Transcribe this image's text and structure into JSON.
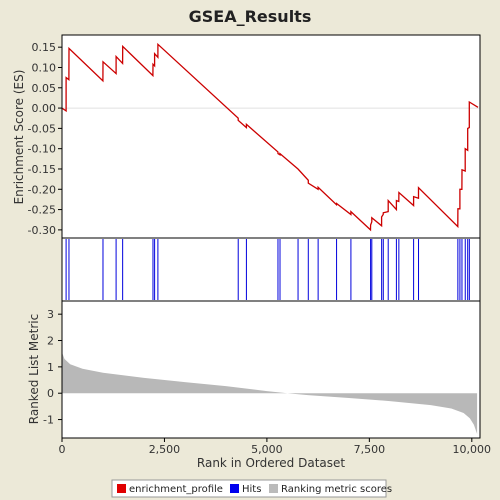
{
  "chart_data": {
    "type": "line",
    "title": "GSEA_Results",
    "xlabel": "Rank in Ordered Dataset",
    "es_panel": {
      "ylabel": "Enrichment Score (ES)",
      "ylim": [
        -0.32,
        0.18
      ],
      "yticks": [
        "0.15",
        "0.10",
        "0.05",
        "0.00",
        "-0.05",
        "-0.10",
        "-0.15",
        "-0.20",
        "-0.25",
        "-0.30"
      ],
      "ytick_values": [
        0.15,
        0.1,
        0.05,
        0.0,
        -0.05,
        -0.1,
        -0.15,
        -0.2,
        -0.25,
        -0.3
      ]
    },
    "rank_panel": {
      "ylabel": "Ranked List Metric",
      "ylim": [
        -1.7,
        3.5
      ],
      "yticks": [
        "3",
        "2",
        "1",
        "0",
        "-1"
      ],
      "ytick_values": [
        3,
        2,
        1,
        0,
        -1
      ]
    },
    "xlim": [
      0,
      10200
    ],
    "xticks": [
      "0",
      "2,500",
      "5,000",
      "7,500",
      "10,000"
    ],
    "xtick_values": [
      0,
      2500,
      5000,
      7500,
      10000
    ],
    "hits": [
      100,
      170,
      1000,
      1320,
      1480,
      2220,
      2260,
      2340,
      4300,
      4500,
      5270,
      5320,
      5760,
      6010,
      6250,
      6700,
      7050,
      7530,
      7560,
      7800,
      7840,
      7960,
      8160,
      8220,
      8580,
      8700,
      9660,
      9710,
      9760,
      9840,
      9900,
      9940
    ],
    "es_curve": [
      [
        0,
        0.0
      ],
      [
        99,
        -0.007
      ],
      [
        100,
        0.075
      ],
      [
        169,
        0.07
      ],
      [
        170,
        0.147
      ],
      [
        999,
        0.067
      ],
      [
        1000,
        0.114
      ],
      [
        1319,
        0.085
      ],
      [
        1320,
        0.127
      ],
      [
        1479,
        0.11
      ],
      [
        1480,
        0.152
      ],
      [
        2219,
        0.08
      ],
      [
        2220,
        0.108
      ],
      [
        2259,
        0.104
      ],
      [
        2260,
        0.134
      ],
      [
        2339,
        0.125
      ],
      [
        2340,
        0.157
      ],
      [
        4299,
        -0.025
      ],
      [
        4300,
        -0.03
      ],
      [
        4499,
        -0.048
      ],
      [
        4500,
        -0.04
      ],
      [
        5269,
        -0.108
      ],
      [
        5270,
        -0.112
      ],
      [
        5319,
        -0.115
      ],
      [
        5320,
        -0.112
      ],
      [
        5759,
        -0.15
      ],
      [
        5760,
        -0.15
      ],
      [
        6009,
        -0.178
      ],
      [
        6010,
        -0.185
      ],
      [
        6249,
        -0.2
      ],
      [
        6250,
        -0.195
      ],
      [
        6699,
        -0.238
      ],
      [
        6700,
        -0.235
      ],
      [
        7049,
        -0.262
      ],
      [
        7050,
        -0.255
      ],
      [
        7529,
        -0.3
      ],
      [
        7530,
        -0.288
      ],
      [
        7559,
        -0.28
      ],
      [
        7560,
        -0.27
      ],
      [
        7799,
        -0.29
      ],
      [
        7800,
        -0.268
      ],
      [
        7839,
        -0.262
      ],
      [
        7840,
        -0.258
      ],
      [
        7959,
        -0.255
      ],
      [
        7960,
        -0.228
      ],
      [
        8159,
        -0.25
      ],
      [
        8160,
        -0.228
      ],
      [
        8219,
        -0.23
      ],
      [
        8220,
        -0.208
      ],
      [
        8579,
        -0.24
      ],
      [
        8580,
        -0.218
      ],
      [
        8699,
        -0.222
      ],
      [
        8700,
        -0.196
      ],
      [
        9659,
        -0.292
      ],
      [
        9660,
        -0.248
      ],
      [
        9709,
        -0.248
      ],
      [
        9710,
        -0.2
      ],
      [
        9759,
        -0.2
      ],
      [
        9760,
        -0.152
      ],
      [
        9839,
        -0.155
      ],
      [
        9840,
        -0.1
      ],
      [
        9899,
        -0.104
      ],
      [
        9900,
        -0.05
      ],
      [
        9939,
        -0.048
      ],
      [
        9940,
        0.015
      ],
      [
        10150,
        0.002
      ]
    ],
    "metric_shape": [
      [
        0,
        1.55
      ],
      [
        60,
        1.3
      ],
      [
        200,
        1.1
      ],
      [
        500,
        0.93
      ],
      [
        1000,
        0.78
      ],
      [
        2000,
        0.58
      ],
      [
        3000,
        0.42
      ],
      [
        4000,
        0.27
      ],
      [
        5000,
        0.08
      ],
      [
        5500,
        0.0
      ],
      [
        6000,
        -0.07
      ],
      [
        7000,
        -0.18
      ],
      [
        8000,
        -0.3
      ],
      [
        9000,
        -0.45
      ],
      [
        9500,
        -0.58
      ],
      [
        9800,
        -0.75
      ],
      [
        9950,
        -0.95
      ],
      [
        10050,
        -1.2
      ],
      [
        10130,
        -1.55
      ]
    ],
    "legend": [
      {
        "label": "enrichment_profile",
        "color": "#e00000"
      },
      {
        "label": "Hits",
        "color": "#0000ee"
      },
      {
        "label": "Ranking metric scores",
        "color": "#bbbbbb"
      }
    ],
    "colors": {
      "curve": "#cc0000",
      "hits": "#0000dd",
      "metric_fill": "#b8b8b8",
      "frame": "#000000",
      "background": "#ece9d8",
      "plot_bg": "#ffffff"
    }
  }
}
